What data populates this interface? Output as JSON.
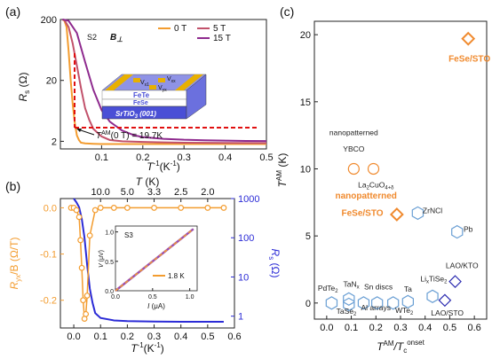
{
  "panels": {
    "a": {
      "label": "(a)"
    },
    "b": {
      "label": "(b)"
    },
    "c": {
      "label": "(c)"
    }
  },
  "chart_data": [
    {
      "panel": "(a)",
      "type": "line",
      "xlabel": "T⁻¹(K⁻¹)",
      "ylabel": "Rs (Ω)",
      "ylabel_main": "R",
      "ylabel_sub": "s",
      "ylabel_unit": " (Ω)",
      "xlabel_main": "T",
      "xlabel_sup": "-1",
      "xlabel_unit": "(K",
      "xlabel_unit_sup": "-1",
      "xlabel_close": ")",
      "sample": "S2",
      "field_dir": "B⊥",
      "field_main": "B",
      "field_sym": "⊥",
      "xlim": [
        0,
        0.5
      ],
      "ylim_log": [
        1.5,
        200
      ],
      "xticks": [
        0.1,
        0.2,
        0.3,
        0.4,
        0.5
      ],
      "xtick_labels": [
        "0.1",
        "0.2",
        "0.3",
        "0.4",
        "0.5"
      ],
      "yticks": [
        2,
        20,
        200
      ],
      "ytick_labels": [
        "2",
        "20",
        "200"
      ],
      "annotation": "TAM(0 T) = 19.7K",
      "annotation_main": "T",
      "annotation_sup": "AM",
      "annotation_rest": "(0 T) = 19.7K",
      "series": [
        {
          "name": "0 T",
          "color": "#f39c2f",
          "x": [
            0.005,
            0.01,
            0.015,
            0.02,
            0.025,
            0.03,
            0.035,
            0.04,
            0.045,
            0.05,
            0.06,
            0.08,
            0.1,
            0.15,
            0.2,
            0.3,
            0.4,
            0.5
          ],
          "y": [
            200,
            190,
            150,
            60,
            20,
            8,
            4,
            2.5,
            2.1,
            1.9,
            1.85,
            1.82,
            1.8,
            1.8,
            1.8,
            1.8,
            1.8,
            1.8
          ]
        },
        {
          "name": "5 T",
          "color": "#c2526b",
          "x": [
            0.005,
            0.01,
            0.02,
            0.03,
            0.04,
            0.05,
            0.06,
            0.07,
            0.08,
            0.1,
            0.12,
            0.15,
            0.2,
            0.25,
            0.3,
            0.4,
            0.5
          ],
          "y": [
            200,
            195,
            150,
            80,
            35,
            15,
            7,
            4.5,
            3.2,
            2.4,
            2.1,
            2.0,
            1.95,
            1.92,
            1.9,
            1.88,
            1.87
          ]
        },
        {
          "name": "15 T",
          "color": "#8e2a8e",
          "x": [
            0.005,
            0.01,
            0.02,
            0.04,
            0.06,
            0.08,
            0.1,
            0.12,
            0.15,
            0.18,
            0.2,
            0.25,
            0.3,
            0.35,
            0.4,
            0.45,
            0.5
          ],
          "y": [
            200,
            198,
            190,
            120,
            40,
            14,
            6.5,
            4.2,
            3.0,
            2.5,
            2.35,
            2.2,
            2.12,
            2.08,
            2.05,
            2.03,
            2.02
          ]
        }
      ],
      "inset_layers": [
        "FeTe",
        "FeSe",
        "SrTiO3 (001)"
      ],
      "inset_fete": "FeTe",
      "inset_fese": "FeSe",
      "inset_sto_main": "SrTiO",
      "inset_sto_sub": "3",
      "inset_sto_rest": " (001)",
      "inset_contacts": [
        {
          "main": "V",
          "sub": "x1"
        },
        {
          "main": "V",
          "sub": "xx"
        },
        {
          "main": "V",
          "sub": "yx"
        }
      ],
      "colors": {
        "film": "#8f93e6",
        "substrate": "#4a4fd6",
        "contact": "#e8b000",
        "fete": "#ffffff",
        "fese": "#ffffff"
      }
    },
    {
      "panel": "(b)",
      "type": "line",
      "xlabel": "T⁻¹(K⁻¹)",
      "xlabel_main": "T",
      "xlabel_sup": "-1",
      "xlabel_unit": "(K",
      "xlabel_unit_sup": "-1",
      "xlabel_close": ")",
      "top_xlabel": "T (K)",
      "top_xlabel_main": "T",
      "top_xlabel_rest": " (K)",
      "ylabel_left": "Ryx/B (Ω/T)",
      "ylabel_left_main": "R",
      "ylabel_left_sub": "yx",
      "ylabel_left_rest": "/B (Ω/T)",
      "ylabel_right": "Rs (Ω)",
      "ylabel_right_main": "R",
      "ylabel_right_sub": "s",
      "ylabel_right_rest": " (Ω)",
      "xlim": [
        -0.05,
        0.6
      ],
      "xticks": [
        0.0,
        0.1,
        0.2,
        0.3,
        0.4,
        0.5,
        0.6
      ],
      "xtick_labels": [
        "0.0",
        "0.1",
        "0.2",
        "0.3",
        "0.4",
        "0.5",
        "0.6"
      ],
      "top_xtick_labels": [
        "10.0",
        "5.0",
        "3.3",
        "2.5",
        "2.0"
      ],
      "top_xtick_values": [
        0.1,
        0.2,
        0.3,
        0.4,
        0.5
      ],
      "ylim_left": [
        -0.26,
        0.02
      ],
      "yticks_left": [
        0.0,
        -0.1,
        -0.2
      ],
      "ytick_left_labels": [
        "0.0",
        "-0.1",
        "-0.2"
      ],
      "ylim_right_log": [
        0.5,
        1000
      ],
      "yticks_right": [
        1,
        10,
        100,
        1000
      ],
      "ytick_right_labels": [
        "1",
        "10",
        "100",
        "1000"
      ],
      "left_color": "#f39c2f",
      "right_color": "#2b2bd6",
      "ryx": {
        "x": [
          -0.01,
          0.0,
          0.01,
          0.02,
          0.025,
          0.03,
          0.035,
          0.04,
          0.045,
          0.05,
          0.06,
          0.08,
          0.1,
          0.15,
          0.2,
          0.3,
          0.4,
          0.5,
          0.56
        ],
        "y": [
          0.0,
          0.0,
          -0.005,
          -0.02,
          -0.07,
          -0.13,
          -0.2,
          -0.24,
          -0.23,
          -0.19,
          -0.06,
          -0.005,
          0.0,
          0.0,
          0.0,
          0.0,
          0.0,
          0.0,
          0.0
        ]
      },
      "rs": {
        "x": [
          0.0,
          0.01,
          0.02,
          0.03,
          0.04,
          0.05,
          0.06,
          0.07,
          0.08,
          0.1,
          0.15,
          0.2,
          0.3,
          0.4,
          0.5,
          0.56
        ],
        "y": [
          1000,
          800,
          600,
          300,
          100,
          20,
          5,
          2.2,
          1.2,
          0.9,
          0.78,
          0.75,
          0.73,
          0.72,
          0.72,
          0.72
        ]
      },
      "inset": {
        "sample": "S3",
        "legend": "1.8 K",
        "xlabel": "I (μA)",
        "xlabel_main": "I",
        "xlabel_rest": " (μA)",
        "ylabel": "V (μV)",
        "ylabel_main": "V",
        "ylabel_rest": " (μV)",
        "xlim": [
          0,
          1.1
        ],
        "ylim": [
          0,
          1.1
        ],
        "xticks": [
          0.0,
          0.5,
          1.0
        ],
        "xtick_labels": [
          "0.0",
          "0.5",
          "1.0"
        ],
        "yticks": [
          0.0,
          0.5,
          1.0
        ],
        "ytick_labels": [
          "0.0",
          "0.5",
          "1.0"
        ],
        "line": {
          "x": [
            0.0,
            1.05
          ],
          "y": [
            0.0,
            1.05
          ]
        },
        "colors": [
          "#f39c2f",
          "#9b4fb0"
        ]
      }
    },
    {
      "panel": "(c)",
      "type": "scatter",
      "xlabel": "TAM/Tc onset",
      "xlabel_main": "T",
      "xlabel_sup": "AM",
      "xlabel_mid": "/T",
      "xlabel_sub": "c",
      "xlabel_sup2": "onset",
      "ylabel": "TAM (K)",
      "ylabel_main": "T",
      "ylabel_sup": "AM",
      "ylabel_rest": " (K)",
      "xlim": [
        -0.05,
        0.65
      ],
      "ylim": [
        -1.2,
        21
      ],
      "xticks": [
        0.0,
        0.1,
        0.2,
        0.3,
        0.4,
        0.5,
        0.6
      ],
      "xtick_labels": [
        "0.0",
        "0.1",
        "0.2",
        "0.3",
        "0.4",
        "0.5",
        "0.6"
      ],
      "yticks": [
        0,
        5,
        10,
        15,
        20
      ],
      "ytick_labels": [
        "0",
        "5",
        "10",
        "15",
        "20"
      ],
      "points": [
        {
          "x": 0.575,
          "y": 19.7,
          "marker": "diamond",
          "color": "#f08a2e",
          "bold": true
        },
        {
          "x": 0.11,
          "y": 10.0,
          "marker": "circle",
          "color": "#f08a2e",
          "bold": false
        },
        {
          "x": 0.19,
          "y": 10.0,
          "marker": "circle",
          "color": "#f08a2e",
          "bold": false
        },
        {
          "x": 0.285,
          "y": 6.6,
          "marker": "diamond",
          "color": "#f08a2e",
          "bold": true
        },
        {
          "x": 0.37,
          "y": 6.7,
          "marker": "hexagon",
          "color": "#6a9fd4",
          "bold": false
        },
        {
          "x": 0.53,
          "y": 5.3,
          "marker": "hexagon",
          "color": "#6a9fd4",
          "bold": false
        },
        {
          "x": 0.522,
          "y": 1.6,
          "marker": "diamond",
          "color": "#2b2bb0",
          "bold": false
        },
        {
          "x": 0.48,
          "y": 0.2,
          "marker": "diamond",
          "color": "#2b2bb0",
          "bold": false
        },
        {
          "x": 0.02,
          "y": 0.0,
          "marker": "hexagon",
          "color": "#6a9fd4",
          "bold": false
        },
        {
          "x": 0.09,
          "y": 0.3,
          "marker": "hexagon",
          "color": "#6a9fd4",
          "bold": false
        },
        {
          "x": 0.09,
          "y": -0.1,
          "marker": "hexagon",
          "color": "#6a9fd4",
          "bold": false
        },
        {
          "x": 0.15,
          "y": 0.0,
          "marker": "hexagon",
          "color": "#6a9fd4",
          "bold": false
        },
        {
          "x": 0.205,
          "y": 0.0,
          "marker": "hexagon",
          "color": "#6a9fd4",
          "bold": false
        },
        {
          "x": 0.27,
          "y": 0.0,
          "marker": "hexagon",
          "color": "#6a9fd4",
          "bold": false
        },
        {
          "x": 0.33,
          "y": 0.1,
          "marker": "hexagon",
          "color": "#6a9fd4",
          "bold": false
        },
        {
          "x": 0.43,
          "y": 0.5,
          "marker": "hexagon",
          "color": "#6a9fd4",
          "bold": false
        }
      ],
      "labels": [
        {
          "parts": [
            {
              "t": "FeSe/STO"
            }
          ],
          "x": 0.58,
          "y": 18.0,
          "color": "#f08a2e",
          "bold": true,
          "anchor": "middle"
        },
        {
          "parts": [
            {
              "t": "nanopatterned"
            }
          ],
          "x": 0.11,
          "y": 12.5,
          "color": "#222222",
          "bold": false,
          "anchor": "middle"
        },
        {
          "parts": [
            {
              "t": "YBCO"
            }
          ],
          "x": 0.11,
          "y": 11.3,
          "color": "#222222",
          "bold": false,
          "anchor": "middle"
        },
        {
          "parts": [
            {
              "t": "La"
            },
            {
              "t": "2",
              "sub": true
            },
            {
              "t": "CuO"
            },
            {
              "t": "4+δ",
              "sub": true
            }
          ],
          "x": 0.2,
          "y": 8.6,
          "color": "#222222",
          "bold": false,
          "anchor": "middle"
        },
        {
          "parts": [
            {
              "t": "nanopatterned"
            }
          ],
          "x": 0.16,
          "y": 7.8,
          "color": "#f08a2e",
          "bold": true,
          "anchor": "middle"
        },
        {
          "parts": [
            {
              "t": "FeSe/STO"
            }
          ],
          "x": 0.145,
          "y": 6.5,
          "color": "#f08a2e",
          "bold": true,
          "anchor": "middle"
        },
        {
          "parts": [
            {
              "t": "ZrNCl"
            }
          ],
          "x": 0.43,
          "y": 6.7,
          "color": "#222222",
          "bold": false,
          "anchor": "middle"
        },
        {
          "parts": [
            {
              "t": "Pb"
            }
          ],
          "x": 0.575,
          "y": 5.3,
          "color": "#222222",
          "bold": false,
          "anchor": "middle"
        },
        {
          "parts": [
            {
              "t": "LAO/KTO"
            }
          ],
          "x": 0.55,
          "y": 2.6,
          "color": "#222222",
          "bold": false,
          "anchor": "middle"
        },
        {
          "parts": [
            {
              "t": "LAO/STO"
            }
          ],
          "x": 0.49,
          "y": -0.95,
          "color": "#222222",
          "bold": false,
          "anchor": "middle"
        },
        {
          "parts": [
            {
              "t": "Li"
            },
            {
              "t": "x",
              "sub": true
            },
            {
              "t": "TiSe"
            },
            {
              "t": "2",
              "sub": true
            }
          ],
          "x": 0.435,
          "y": 1.6,
          "color": "#222222",
          "bold": false,
          "anchor": "middle"
        },
        {
          "parts": [
            {
              "t": "Ta"
            }
          ],
          "x": 0.33,
          "y": 0.85,
          "color": "#222222",
          "bold": false,
          "anchor": "middle"
        },
        {
          "parts": [
            {
              "t": "WTe"
            },
            {
              "t": "2",
              "sub": true
            }
          ],
          "x": 0.315,
          "y": -0.75,
          "color": "#222222",
          "bold": false,
          "anchor": "middle"
        },
        {
          "parts": [
            {
              "t": "Sn discs"
            }
          ],
          "x": 0.21,
          "y": 1.0,
          "color": "#222222",
          "bold": false,
          "anchor": "middle"
        },
        {
          "parts": [
            {
              "t": "Al arrays"
            }
          ],
          "x": 0.2,
          "y": -0.55,
          "color": "#222222",
          "bold": false,
          "anchor": "middle"
        },
        {
          "parts": [
            {
              "t": "TaN"
            },
            {
              "t": "x",
              "sub": true
            }
          ],
          "x": 0.1,
          "y": 1.2,
          "color": "#222222",
          "bold": false,
          "anchor": "middle"
        },
        {
          "parts": [
            {
              "t": "TaSe"
            },
            {
              "t": "2",
              "sub": true
            }
          ],
          "x": 0.08,
          "y": -0.8,
          "color": "#222222",
          "bold": false,
          "anchor": "middle"
        },
        {
          "parts": [
            {
              "t": "PdTe"
            },
            {
              "t": "2",
              "sub": true
            }
          ],
          "x": 0.005,
          "y": 0.9,
          "color": "#222222",
          "bold": false,
          "anchor": "middle"
        }
      ]
    }
  ]
}
